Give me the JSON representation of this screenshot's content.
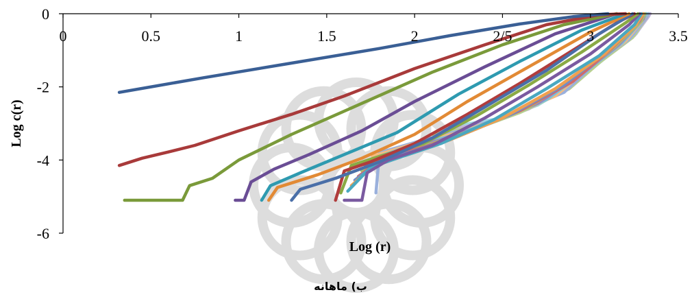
{
  "chart_data": {
    "type": "line",
    "title": "",
    "caption": "ب) ماهانه",
    "xlabel": "Log (r)",
    "ylabel": "Log c(r)",
    "xlim": [
      0,
      3.5
    ],
    "ylim": [
      -6,
      0
    ],
    "x_ticks": [
      0,
      0.5,
      1,
      1.5,
      2,
      2.5,
      3,
      3.5
    ],
    "x_tick_labels": [
      "0",
      "0.5",
      "1",
      "1.5",
      "2",
      "2/5",
      "3",
      "3.5"
    ],
    "y_ticks": [
      0,
      -2,
      -4,
      -6
    ],
    "y_tick_labels": [
      "0",
      "-2",
      "-4",
      "-6"
    ],
    "grid": false,
    "legend": "none",
    "series": [
      {
        "color": "#3a5f95",
        "points": [
          [
            0.32,
            -2.15
          ],
          [
            0.8,
            -1.75
          ],
          [
            1.3,
            -1.35
          ],
          [
            1.8,
            -0.95
          ],
          [
            2.2,
            -0.6
          ],
          [
            2.6,
            -0.28
          ],
          [
            2.9,
            -0.08
          ],
          [
            3.1,
            0
          ]
        ]
      },
      {
        "color": "#a83a3a",
        "points": [
          [
            0.32,
            -4.15
          ],
          [
            0.45,
            -3.95
          ],
          [
            0.6,
            -3.78
          ],
          [
            0.75,
            -3.6
          ],
          [
            1.0,
            -3.2
          ],
          [
            1.3,
            -2.75
          ],
          [
            1.6,
            -2.25
          ],
          [
            2.0,
            -1.5
          ],
          [
            2.4,
            -0.85
          ],
          [
            2.75,
            -0.3
          ],
          [
            3.05,
            -0.03
          ],
          [
            3.2,
            0
          ]
        ]
      },
      {
        "color": "#7a9a3a",
        "points": [
          [
            0.35,
            -5.1
          ],
          [
            0.68,
            -5.1
          ],
          [
            0.72,
            -4.7
          ],
          [
            0.85,
            -4.5
          ],
          [
            1.0,
            -4.0
          ],
          [
            1.3,
            -3.3
          ],
          [
            1.7,
            -2.45
          ],
          [
            2.1,
            -1.6
          ],
          [
            2.5,
            -0.85
          ],
          [
            2.85,
            -0.3
          ],
          [
            3.15,
            0
          ]
        ]
      },
      {
        "color": "#6a4d95",
        "points": [
          [
            0.98,
            -5.1
          ],
          [
            1.03,
            -5.1
          ],
          [
            1.07,
            -4.6
          ],
          [
            1.2,
            -4.25
          ],
          [
            1.4,
            -3.85
          ],
          [
            1.7,
            -3.2
          ],
          [
            2.0,
            -2.4
          ],
          [
            2.4,
            -1.45
          ],
          [
            2.8,
            -0.55
          ],
          [
            3.15,
            0
          ]
        ]
      },
      {
        "color": "#2e9ab0",
        "points": [
          [
            1.13,
            -5.1
          ],
          [
            1.18,
            -4.7
          ],
          [
            1.35,
            -4.35
          ],
          [
            1.6,
            -3.85
          ],
          [
            1.9,
            -3.25
          ],
          [
            2.25,
            -2.2
          ],
          [
            2.6,
            -1.3
          ],
          [
            2.95,
            -0.45
          ],
          [
            3.2,
            0
          ]
        ]
      },
      {
        "color": "#e28a35",
        "points": [
          [
            1.17,
            -5.1
          ],
          [
            1.22,
            -4.75
          ],
          [
            1.45,
            -4.4
          ],
          [
            1.7,
            -3.95
          ],
          [
            2.0,
            -3.3
          ],
          [
            2.3,
            -2.4
          ],
          [
            2.65,
            -1.45
          ],
          [
            3.0,
            -0.5
          ],
          [
            3.22,
            0
          ]
        ]
      },
      {
        "color": "#4a6fa8",
        "points": [
          [
            1.3,
            -5.1
          ],
          [
            1.35,
            -4.8
          ],
          [
            1.55,
            -4.5
          ],
          [
            1.8,
            -4.05
          ],
          [
            2.1,
            -3.4
          ],
          [
            2.4,
            -2.55
          ],
          [
            2.75,
            -1.55
          ],
          [
            3.05,
            -0.55
          ],
          [
            3.24,
            0
          ]
        ]
      },
      {
        "color": "#b03c3c",
        "points": [
          [
            1.55,
            -5.1
          ],
          [
            1.6,
            -4.3
          ],
          [
            1.75,
            -4.05
          ],
          [
            2.0,
            -3.55
          ],
          [
            2.3,
            -2.75
          ],
          [
            2.6,
            -1.9
          ],
          [
            2.9,
            -1.0
          ],
          [
            3.15,
            -0.25
          ],
          [
            3.25,
            0
          ]
        ]
      },
      {
        "color": "#8aaa45",
        "points": [
          [
            1.58,
            -4.9
          ],
          [
            1.64,
            -4.15
          ],
          [
            1.8,
            -3.9
          ],
          [
            2.05,
            -3.55
          ],
          [
            2.35,
            -2.8
          ],
          [
            2.65,
            -1.95
          ],
          [
            2.95,
            -1.05
          ],
          [
            3.2,
            -0.25
          ],
          [
            3.27,
            0
          ]
        ]
      },
      {
        "color": "#7a5aa0",
        "points": [
          [
            1.6,
            -5.1
          ],
          [
            1.7,
            -5.1
          ],
          [
            1.73,
            -4.35
          ],
          [
            1.85,
            -4.0
          ],
          [
            2.1,
            -3.6
          ],
          [
            2.4,
            -2.85
          ],
          [
            2.7,
            -2.0
          ],
          [
            3.0,
            -1.1
          ],
          [
            3.22,
            -0.3
          ],
          [
            3.28,
            0
          ]
        ]
      },
      {
        "color": "#4aa8c0",
        "points": [
          [
            1.62,
            -4.85
          ],
          [
            1.75,
            -4.2
          ],
          [
            1.9,
            -3.95
          ],
          [
            2.15,
            -3.55
          ],
          [
            2.45,
            -2.9
          ],
          [
            2.75,
            -2.05
          ],
          [
            3.05,
            -1.15
          ],
          [
            3.25,
            -0.3
          ],
          [
            3.29,
            0
          ]
        ]
      },
      {
        "color": "#f0a050",
        "points": [
          [
            1.64,
            -4.7
          ],
          [
            1.77,
            -4.15
          ],
          [
            1.95,
            -3.85
          ],
          [
            2.2,
            -3.45
          ],
          [
            2.5,
            -2.85
          ],
          [
            2.8,
            -2.05
          ],
          [
            3.08,
            -1.1
          ],
          [
            3.26,
            -0.3
          ],
          [
            3.3,
            0
          ]
        ]
      },
      {
        "color": "#6f8fc8",
        "points": [
          [
            1.66,
            -4.55
          ],
          [
            1.8,
            -4.05
          ],
          [
            2.0,
            -3.75
          ],
          [
            2.25,
            -3.35
          ],
          [
            2.55,
            -2.75
          ],
          [
            2.85,
            -1.95
          ],
          [
            3.1,
            -1.0
          ],
          [
            3.27,
            -0.25
          ],
          [
            3.3,
            0
          ]
        ]
      },
      {
        "color": "#d06a6a",
        "points": [
          [
            1.68,
            -4.45
          ],
          [
            1.82,
            -3.95
          ],
          [
            2.05,
            -3.65
          ],
          [
            2.3,
            -3.25
          ],
          [
            2.6,
            -2.65
          ],
          [
            2.9,
            -1.85
          ],
          [
            3.12,
            -0.95
          ],
          [
            3.28,
            -0.2
          ],
          [
            3.3,
            0
          ]
        ]
      },
      {
        "color": "#a8c070",
        "points": [
          [
            1.7,
            -4.3
          ],
          [
            1.85,
            -3.85
          ],
          [
            2.1,
            -3.55
          ],
          [
            2.35,
            -3.15
          ],
          [
            2.65,
            -2.55
          ],
          [
            2.92,
            -1.75
          ],
          [
            3.14,
            -0.9
          ],
          [
            3.29,
            -0.2
          ],
          [
            3.31,
            0
          ]
        ]
      },
      {
        "color": "#9a80c0",
        "points": [
          [
            1.72,
            -4.15
          ],
          [
            1.9,
            -3.75
          ],
          [
            2.15,
            -3.45
          ],
          [
            2.4,
            -3.05
          ],
          [
            2.7,
            -2.45
          ],
          [
            2.95,
            -1.65
          ],
          [
            3.16,
            -0.85
          ],
          [
            3.3,
            -0.15
          ],
          [
            3.31,
            0
          ]
        ]
      },
      {
        "color": "#7cc4d6",
        "points": [
          [
            1.74,
            -4.0
          ],
          [
            1.95,
            -3.65
          ],
          [
            2.2,
            -3.35
          ],
          [
            2.45,
            -2.95
          ],
          [
            2.75,
            -2.35
          ],
          [
            2.98,
            -1.55
          ],
          [
            3.18,
            -0.8
          ],
          [
            3.3,
            -0.15
          ],
          [
            3.32,
            0
          ]
        ]
      },
      {
        "color": "#f5bb80",
        "points": [
          [
            1.76,
            -3.9
          ],
          [
            2.0,
            -3.55
          ],
          [
            2.25,
            -3.25
          ],
          [
            2.5,
            -2.85
          ],
          [
            2.8,
            -2.25
          ],
          [
            3.0,
            -1.45
          ],
          [
            3.2,
            -0.75
          ],
          [
            3.31,
            -0.1
          ],
          [
            3.32,
            0
          ]
        ]
      },
      {
        "color": "#9ab0dc",
        "points": [
          [
            1.78,
            -4.9
          ],
          [
            1.8,
            -3.8
          ],
          [
            2.05,
            -3.45
          ],
          [
            2.3,
            -3.15
          ],
          [
            2.55,
            -2.75
          ],
          [
            2.85,
            -2.15
          ],
          [
            3.03,
            -1.35
          ],
          [
            3.22,
            -0.7
          ],
          [
            3.32,
            -0.1
          ],
          [
            3.33,
            0
          ]
        ]
      },
      {
        "color": "#b8d090",
        "points": [
          [
            2.1,
            -3.3
          ],
          [
            2.4,
            -3.05
          ],
          [
            2.6,
            -2.7
          ],
          [
            2.88,
            -2.05
          ],
          [
            3.06,
            -1.3
          ],
          [
            3.24,
            -0.65
          ],
          [
            3.32,
            -0.1
          ],
          [
            3.33,
            0
          ]
        ]
      },
      {
        "color": "#c4b4dc",
        "points": [
          [
            2.15,
            -3.2
          ],
          [
            2.45,
            -2.95
          ],
          [
            2.65,
            -2.6
          ],
          [
            2.9,
            -1.95
          ],
          [
            3.08,
            -1.2
          ],
          [
            3.25,
            -0.6
          ],
          [
            3.33,
            -0.08
          ],
          [
            3.34,
            0
          ]
        ]
      },
      {
        "color": "#a0d8e4",
        "points": [
          [
            2.2,
            -3.1
          ],
          [
            2.5,
            -2.85
          ],
          [
            2.7,
            -2.5
          ],
          [
            2.92,
            -1.85
          ],
          [
            3.1,
            -1.15
          ],
          [
            3.26,
            -0.55
          ],
          [
            3.33,
            -0.05
          ],
          [
            3.34,
            0
          ]
        ]
      }
    ]
  }
}
